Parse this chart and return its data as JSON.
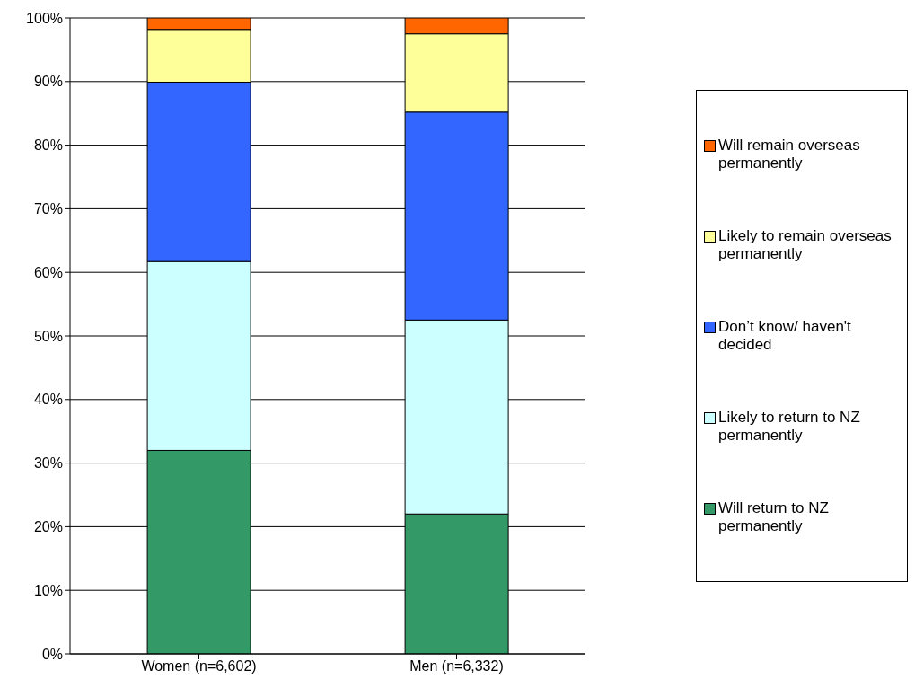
{
  "chart_data": {
    "type": "bar",
    "stacked": true,
    "categories": [
      "Women (n=6,602)",
      "Men (n=6,332)"
    ],
    "series": [
      {
        "name": "Will return to NZ permanently",
        "color": "#339966",
        "values": [
          32,
          22
        ]
      },
      {
        "name": "Likely to return to NZ permanently",
        "color": "#ccffff",
        "values": [
          29.7,
          30.5
        ]
      },
      {
        "name": "Don’t know/ haven't decided",
        "color": "#3366ff",
        "values": [
          28.2,
          32.7
        ]
      },
      {
        "name": "Likely to remain overseas permanently",
        "color": "#ffff99",
        "values": [
          8.3,
          12.3
        ]
      },
      {
        "name": "Will remain overseas permanently",
        "color": "#ff6600",
        "values": [
          1.8,
          2.5
        ]
      }
    ],
    "ylim": [
      0,
      100
    ],
    "yticks": [
      {
        "value": 0,
        "label": "0%"
      },
      {
        "value": 10,
        "label": "10%"
      },
      {
        "value": 20,
        "label": "20%"
      },
      {
        "value": 30,
        "label": "30%"
      },
      {
        "value": 40,
        "label": "40%"
      },
      {
        "value": 50,
        "label": "50%"
      },
      {
        "value": 60,
        "label": "60%"
      },
      {
        "value": 70,
        "label": "70%"
      },
      {
        "value": 80,
        "label": "80%"
      },
      {
        "value": 90,
        "label": "90%"
      },
      {
        "value": 100,
        "label": "100%"
      }
    ],
    "grid": "y",
    "legend": "right"
  }
}
